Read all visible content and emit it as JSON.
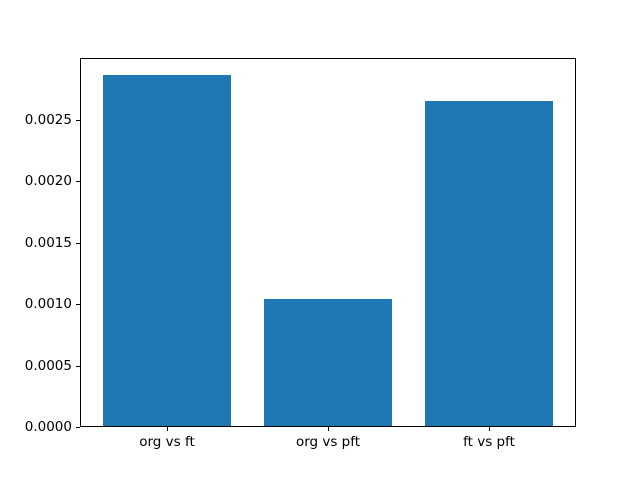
{
  "chart_data": {
    "type": "bar",
    "categories": [
      "org vs ft",
      "org vs pft",
      "ft vs pft"
    ],
    "values": [
      0.00286,
      0.00104,
      0.00265
    ],
    "title": "",
    "xlabel": "",
    "ylabel": "",
    "ylim": [
      0,
      0.003
    ],
    "xlim": [
      -0.54,
      2.54
    ],
    "bar_width": 0.8,
    "yticks": [
      0.0,
      0.0005,
      0.001,
      0.0015,
      0.002,
      0.0025
    ],
    "ytick_labels": [
      "0.0000",
      "0.0005",
      "0.0010",
      "0.0015",
      "0.0020",
      "0.0025"
    ],
    "grid": false,
    "legend": null,
    "bar_color": "#1f77b4",
    "axis_color": "#000000",
    "background_color": "#ffffff"
  }
}
